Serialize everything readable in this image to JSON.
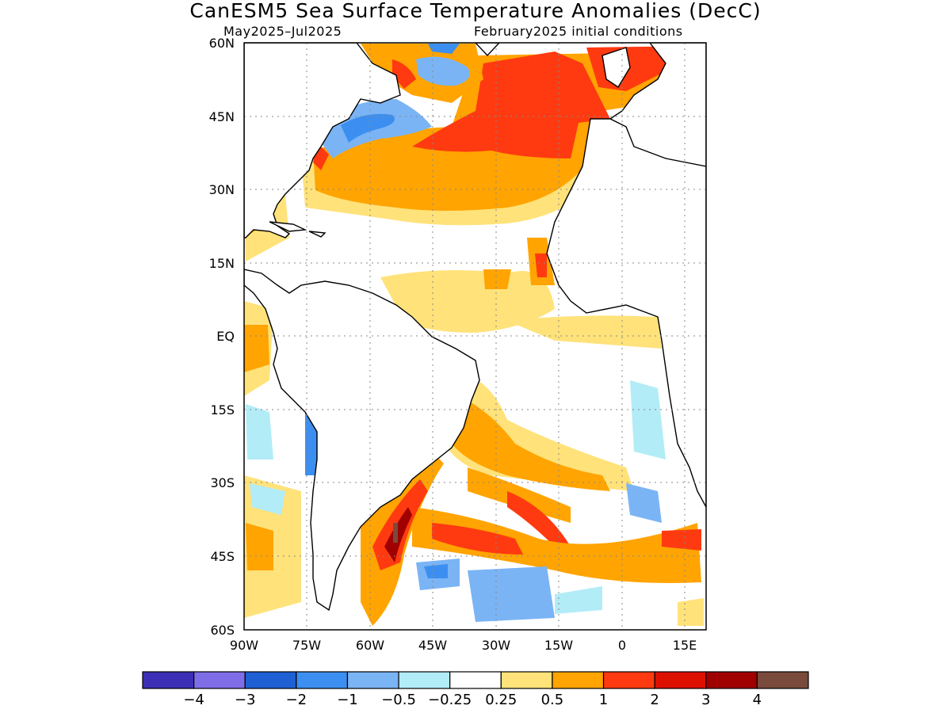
{
  "title": "CanESM5 Sea Surface Temperature Anomalies (DecC)",
  "subtitle_left": "May2025–Jul2025",
  "subtitle_right": "February2025 initial conditions",
  "map": {
    "lon_range": [
      -90,
      20
    ],
    "lat_range": [
      -60,
      60
    ],
    "lat_ticks": [
      "60N",
      "45N",
      "30N",
      "15N",
      "EQ",
      "15S",
      "30S",
      "45S",
      "60S"
    ],
    "lon_ticks": [
      "90W",
      "75W",
      "60W",
      "45W",
      "30W",
      "15W",
      "0",
      "15E"
    ],
    "gridlines": "dotted",
    "land_color": "#ffffff",
    "coastline_color": "#000000"
  },
  "colorbar": {
    "colors": [
      "#3c2fb5",
      "#7f6de8",
      "#1f5fd4",
      "#3c8ff0",
      "#7ab4f5",
      "#b2ecf7",
      "#ffffff",
      "#ffe27a",
      "#ffa400",
      "#ff3a10",
      "#dd1000",
      "#a00000",
      "#7a4a3c"
    ],
    "labels": [
      "−4",
      "−3",
      "−2",
      "−1",
      "−0.5",
      "−0.25",
      "0.25",
      "0.5",
      "1",
      "2",
      "3",
      "4"
    ]
  }
}
